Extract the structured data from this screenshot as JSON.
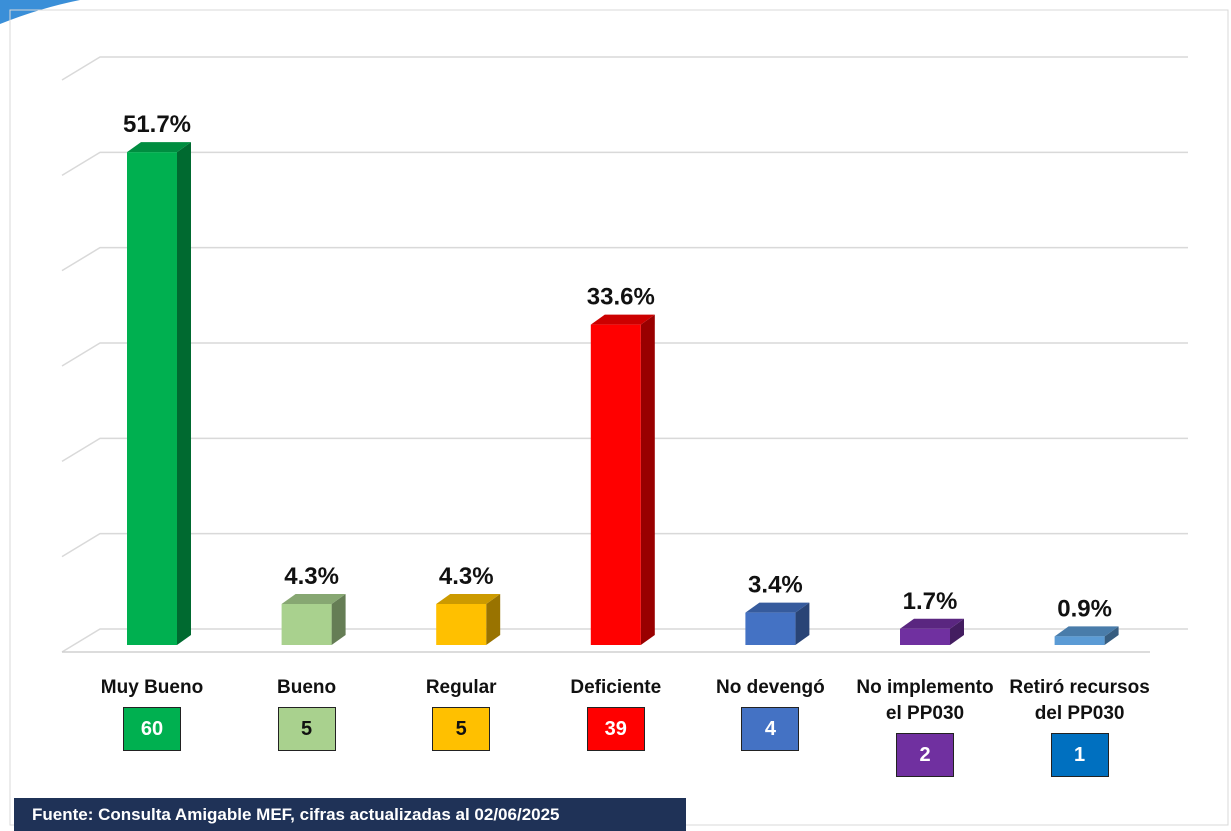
{
  "chart_data": {
    "type": "bar",
    "categories": [
      "Muy Bueno",
      "Bueno",
      "Regular",
      "Deficiente",
      "No devengó",
      "No implemento el PP030",
      "Retiró recursos del PP030"
    ],
    "values": [
      51.7,
      4.3,
      4.3,
      33.6,
      3.4,
      1.7,
      0.9
    ],
    "value_labels": [
      "51.7%",
      "4.3%",
      "4.3%",
      "33.6%",
      "3.4%",
      "1.7%",
      "0.9%"
    ],
    "colors": [
      "#00b050",
      "#a9d18e",
      "#ffc000",
      "#ff0000",
      "#4472c4",
      "#7030a0",
      "#5b9bd5"
    ],
    "counts": [
      60,
      5,
      5,
      39,
      4,
      2,
      1
    ],
    "count_colors": [
      "#00b050",
      "#a9d18e",
      "#ffc000",
      "#ff0000",
      "#4472c4",
      "#7030a0",
      "#0070c0"
    ],
    "ylim": [
      0,
      60
    ],
    "yticks": [
      0,
      10,
      20,
      30,
      40,
      50,
      60
    ],
    "grid": true,
    "source": "Fuente: Consulta Amigable MEF, cifras actualizadas al 02/06/2025"
  }
}
